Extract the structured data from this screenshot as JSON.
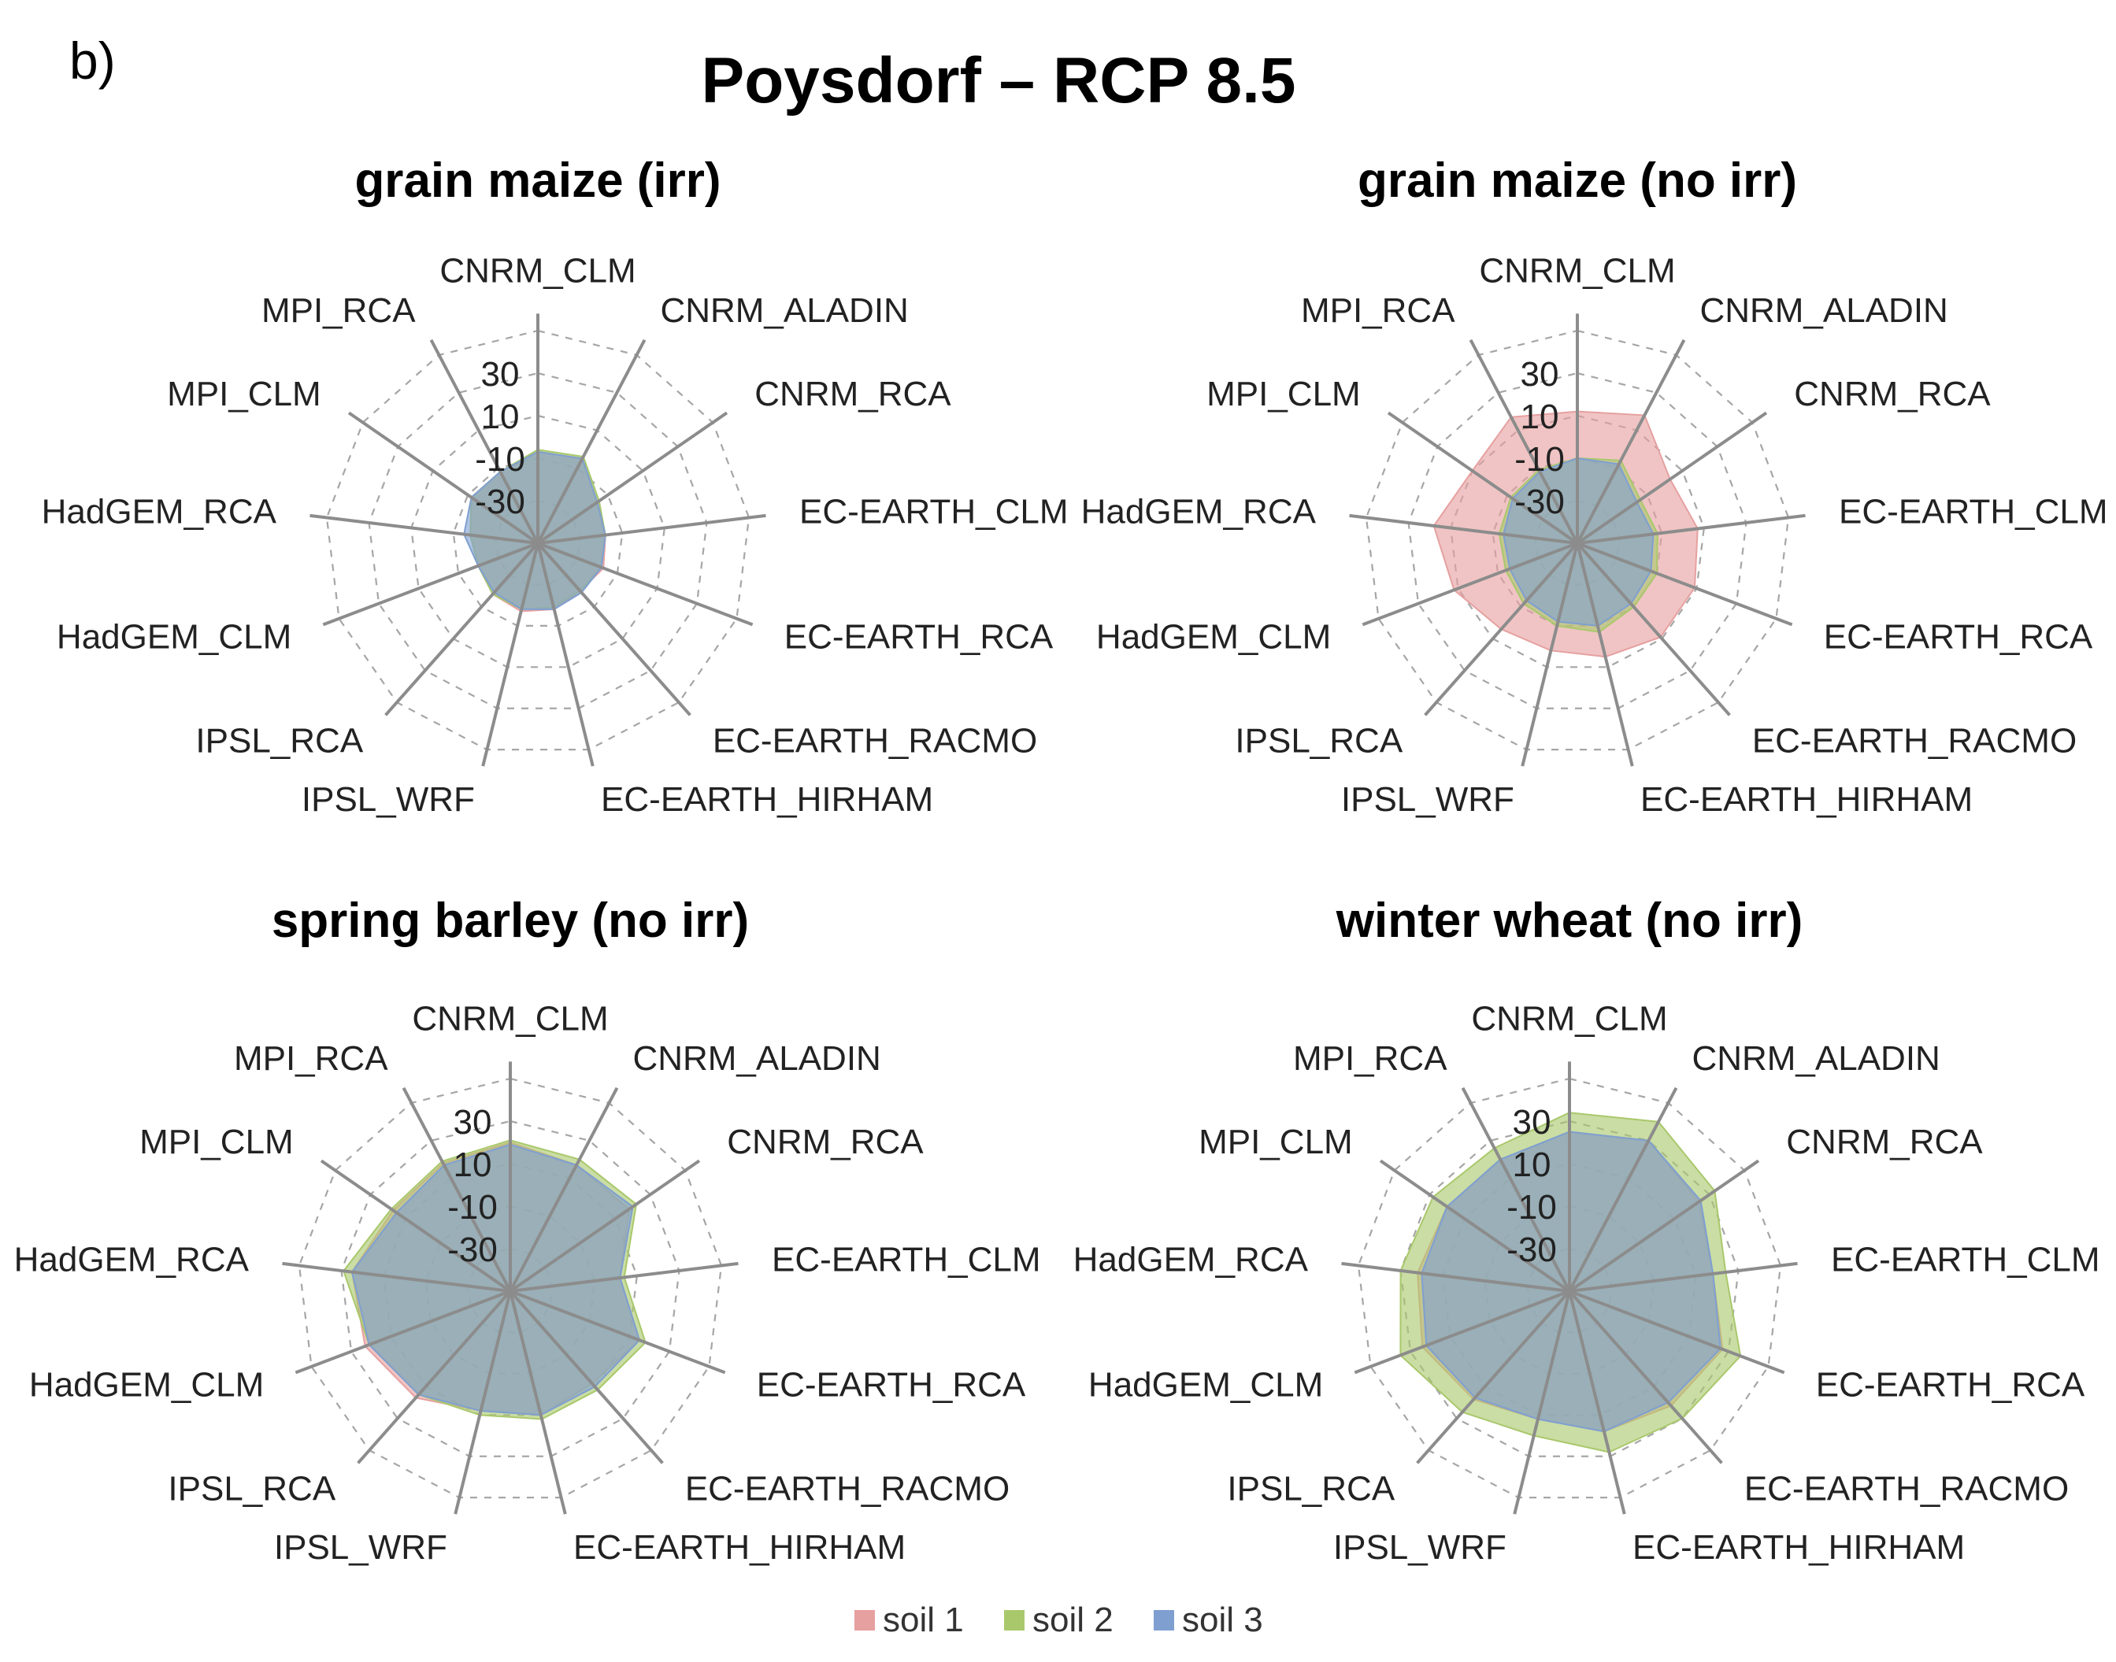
{
  "panel_label": "b)",
  "title": "Poysdorf – RCP 8.5",
  "chart_data": [
    {
      "type": "radar",
      "title": "grain maize (irr)",
      "categories": [
        "CNRM_CLM",
        "CNRM_ALADIN",
        "CNRM_RCA",
        "EC-EARTH_CLM",
        "EC-EARTH_RCA",
        "EC-EARTH_RACMO",
        "EC-EARTH_HIRHAM",
        "IPSL_WRF",
        "IPSL_RCA",
        "HadGEM_CLM",
        "HadGEM_RCA",
        "MPI_CLM",
        "MPI_RCA"
      ],
      "ticks": [
        -30,
        -10,
        10,
        30
      ],
      "rlim": [
        -50,
        50
      ],
      "series": [
        {
          "name": "soil 1",
          "values": [
            -7,
            -5,
            -16,
            -18,
            -17,
            -20,
            -18,
            -17,
            -18,
            -20,
            -18,
            -12,
            -12
          ]
        },
        {
          "name": "soil 2",
          "values": [
            -6,
            -4,
            -15,
            -18,
            -18,
            -20,
            -19,
            -18,
            -18,
            -20,
            -18,
            -12,
            -12
          ]
        },
        {
          "name": "soil 3",
          "values": [
            -7,
            -5,
            -16,
            -18,
            -18,
            -19,
            -18,
            -18,
            -19,
            -20,
            -15,
            -12,
            -12
          ]
        }
      ]
    },
    {
      "type": "radar",
      "title": "grain maize (no irr)",
      "categories": [
        "CNRM_CLM",
        "CNRM_ALADIN",
        "CNRM_RCA",
        "EC-EARTH_CLM",
        "EC-EARTH_RCA",
        "EC-EARTH_RACMO",
        "EC-EARTH_HIRHAM",
        "IPSL_WRF",
        "IPSL_RCA",
        "HadGEM_CLM",
        "HadGEM_RCA",
        "MPI_CLM",
        "MPI_RCA"
      ],
      "ticks": [
        -30,
        -10,
        10,
        30
      ],
      "rlim": [
        -50,
        50
      ],
      "series": [
        {
          "name": "soil 1",
          "values": [
            12,
            18,
            3,
            7,
            9,
            9,
            5,
            2,
            4,
            12,
            18,
            10,
            17
          ]
        },
        {
          "name": "soil 2",
          "values": [
            -10,
            -6,
            -14,
            -12,
            -10,
            -10,
            -7,
            -10,
            -12,
            -14,
            -13,
            -12,
            -11
          ]
        },
        {
          "name": "soil 3",
          "values": [
            -10,
            -8,
            -16,
            -14,
            -13,
            -12,
            -10,
            -12,
            -14,
            -16,
            -15,
            -13,
            -12
          ]
        }
      ]
    },
    {
      "type": "radar",
      "title": "spring barley (no irr)",
      "categories": [
        "CNRM_CLM",
        "CNRM_ALADIN",
        "CNRM_RCA",
        "EC-EARTH_CLM",
        "EC-EARTH_RCA",
        "EC-EARTH_RACMO",
        "EC-EARTH_HIRHAM",
        "IPSL_WRF",
        "IPSL_RCA",
        "HadGEM_CLM",
        "HadGEM_RCA",
        "MPI_CLM",
        "MPI_RCA"
      ],
      "ticks": [
        -30,
        -10,
        10,
        30
      ],
      "rlim": [
        -50,
        50
      ],
      "series": [
        {
          "name": "soil 1",
          "values": [
            20,
            17,
            18,
            2,
            15,
            8,
            10,
            8,
            17,
            23,
            25,
            17,
            18
          ]
        },
        {
          "name": "soil 2",
          "values": [
            21,
            20,
            22,
            4,
            18,
            12,
            12,
            10,
            15,
            21,
            29,
            18,
            19
          ]
        },
        {
          "name": "soil 3",
          "values": [
            19,
            17,
            20,
            2,
            15,
            10,
            10,
            8,
            15,
            21,
            25,
            15,
            17
          ]
        }
      ]
    },
    {
      "type": "radar",
      "title": "winter wheat (no irr)",
      "categories": [
        "CNRM_CLM",
        "CNRM_ALADIN",
        "CNRM_RCA",
        "EC-EARTH_CLM",
        "EC-EARTH_RCA",
        "EC-EARTH_RACMO",
        "EC-EARTH_HIRHAM",
        "IPSL_WRF",
        "IPSL_RCA",
        "HadGEM_CLM",
        "HadGEM_RCA",
        "MPI_CLM",
        "MPI_RCA"
      ],
      "ticks": [
        -30,
        -10,
        10,
        30
      ],
      "rlim": [
        -50,
        50
      ],
      "series": [
        {
          "name": "soil 1",
          "values": [
            25,
            30,
            24,
            18,
            27,
            22,
            18,
            12,
            18,
            24,
            22,
            20,
            20
          ]
        },
        {
          "name": "soil 2",
          "values": [
            34,
            40,
            33,
            24,
            36,
            30,
            28,
            20,
            26,
            35,
            30,
            28,
            26
          ]
        },
        {
          "name": "soil 3",
          "values": [
            25,
            30,
            25,
            18,
            26,
            20,
            18,
            12,
            17,
            22,
            20,
            20,
            20
          ]
        }
      ]
    }
  ],
  "legend": [
    {
      "name": "soil 1",
      "label": "soil 1",
      "color": "#e6a0a0"
    },
    {
      "name": "soil 2",
      "label": "soil 2",
      "color": "#a9c86c"
    },
    {
      "name": "soil 3",
      "label": "soil 3",
      "color": "#7f9fd1"
    }
  ],
  "colors": {
    "soil 1": "#e6a0a0",
    "soil 2": "#a9c86c",
    "soil 3": "#7f9fd1",
    "spoke": "#8c8c8c",
    "grid": "#a6a6a6"
  }
}
